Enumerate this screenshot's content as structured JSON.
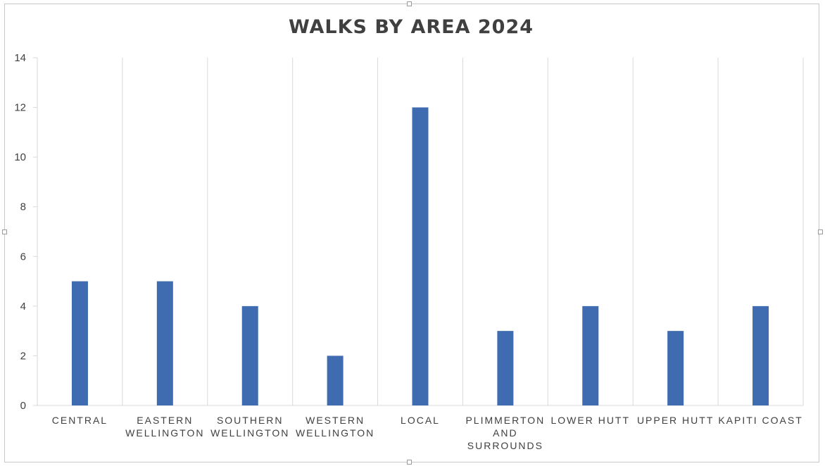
{
  "chart_data": {
    "type": "bar",
    "title": "WALKS BY AREA 2024",
    "xlabel": "",
    "ylabel": "",
    "categories": [
      "CENTRAL",
      "EASTERN WELLINGTON",
      "SOUTHERN WELLINGTON",
      "WESTERN WELLINGTON",
      "LOCAL",
      "PLIMMERTON AND SURROUNDS",
      "LOWER HUTT",
      "UPPER HUTT",
      "KAPITI COAST"
    ],
    "category_lines": [
      [
        "CENTRAL"
      ],
      [
        "EASTERN",
        "WELLINGTON"
      ],
      [
        "SOUTHERN",
        "WELLINGTON"
      ],
      [
        "WESTERN",
        "WELLINGTON"
      ],
      [
        "LOCAL"
      ],
      [
        "PLIMMERTON",
        "AND",
        "SURROUNDS"
      ],
      [
        "LOWER HUTT"
      ],
      [
        "UPPER HUTT"
      ],
      [
        "KAPITI COAST"
      ]
    ],
    "values": [
      5,
      5,
      4,
      2,
      12,
      3,
      4,
      3,
      4
    ],
    "ylim": [
      0,
      14
    ],
    "yticks": [
      0,
      2,
      4,
      6,
      8,
      10,
      12,
      14
    ],
    "grid": "vertical",
    "legend": "none",
    "bar_color": "#3f6cb0"
  }
}
